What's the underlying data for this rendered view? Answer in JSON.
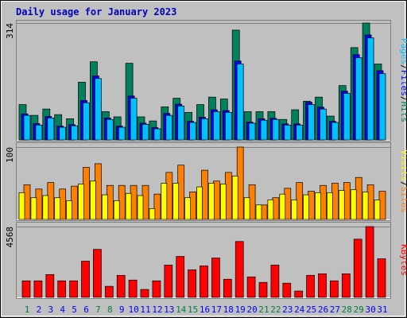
{
  "chart_data": [
    {
      "type": "bar",
      "title": "Daily usage for January 2023",
      "ylim": [
        0,
        314
      ],
      "yticks": [
        314
      ],
      "legend_separator": "/",
      "series": [
        {
          "name": "Hits",
          "color": "#00805c",
          "values": [
            95,
            66,
            83,
            68,
            57,
            155,
            210,
            76,
            62,
            206,
            62,
            51,
            89,
            112,
            74,
            95,
            115,
            110,
            295,
            76,
            76,
            76,
            55,
            81,
            104,
            115,
            64,
            146,
            248,
            314,
            204
          ]
        },
        {
          "name": "Files",
          "color": "#0000ff",
          "values": [
            70,
            44,
            63,
            37,
            41,
            106,
            172,
            59,
            37,
            118,
            45,
            33,
            71,
            96,
            50,
            61,
            81,
            79,
            212,
            48,
            57,
            58,
            43,
            43,
            101,
            88,
            50,
            131,
            229,
            282,
            186
          ]
        },
        {
          "name": "Pages",
          "color": "#00c0ff",
          "values": [
            66,
            40,
            59,
            34,
            38,
            100,
            165,
            55,
            34,
            112,
            42,
            30,
            66,
            91,
            47,
            57,
            76,
            74,
            204,
            45,
            53,
            55,
            40,
            40,
            95,
            83,
            47,
            125,
            221,
            274,
            178
          ]
        }
      ]
    },
    {
      "type": "bar",
      "ylim": [
        0,
        100
      ],
      "yticks": [
        100
      ],
      "legend_separator": "/",
      "series": [
        {
          "name": "Sites",
          "color": "#ff8000",
          "values": [
            48,
            42,
            51,
            42,
            46,
            72,
            77,
            47,
            47,
            47,
            47,
            35,
            65,
            75,
            38,
            68,
            53,
            65,
            100,
            48,
            20,
            30,
            43,
            51,
            39,
            47,
            50,
            51,
            58,
            48,
            39
          ]
        },
        {
          "name": "Visits",
          "color": "#ffff00",
          "values": [
            37,
            30,
            33,
            30,
            26,
            49,
            53,
            34,
            26,
            36,
            33,
            15,
            50,
            50,
            30,
            45,
            50,
            49,
            60,
            30,
            20,
            27,
            35,
            27,
            34,
            37,
            37,
            40,
            41,
            38,
            27
          ]
        }
      ]
    },
    {
      "type": "bar",
      "ylim": [
        0,
        4568
      ],
      "yticks": [
        4568
      ],
      "categories": [
        "1",
        "2",
        "3",
        "4",
        "5",
        "6",
        "7",
        "8",
        "9",
        "10",
        "11",
        "12",
        "13",
        "14",
        "15",
        "16",
        "17",
        "18",
        "19",
        "20",
        "21",
        "22",
        "23",
        "24",
        "25",
        "26",
        "27",
        "28",
        "29",
        "30",
        "31"
      ],
      "category_colors": [
        "#008040",
        "#0000ff",
        "#0000ff",
        "#0000ff",
        "#0000ff",
        "#0000ff",
        "#008040",
        "#008040",
        "#0000ff",
        "#0000ff",
        "#0000ff",
        "#0000ff",
        "#0000ff",
        "#008040",
        "#008040",
        "#0000ff",
        "#0000ff",
        "#0000ff",
        "#0000ff",
        "#0000ff",
        "#008040",
        "#008040",
        "#0000ff",
        "#0000ff",
        "#0000ff",
        "#0000ff",
        "#0000ff",
        "#008040",
        "#008040",
        "#0000ff",
        "#0000ff"
      ],
      "series": [
        {
          "name": "KBytes",
          "color": "#ff0000",
          "values": [
            1065,
            1065,
            1472,
            1065,
            1065,
            2335,
            3096,
            711,
            1421,
            1116,
            508,
            1065,
            2081,
            2639,
            1776,
            2030,
            2538,
            1167,
            3604,
            1320,
            964,
            2081,
            913,
            406,
            1421,
            1523,
            1065,
            1523,
            3756,
            4568,
            2487
          ]
        }
      ]
    }
  ]
}
